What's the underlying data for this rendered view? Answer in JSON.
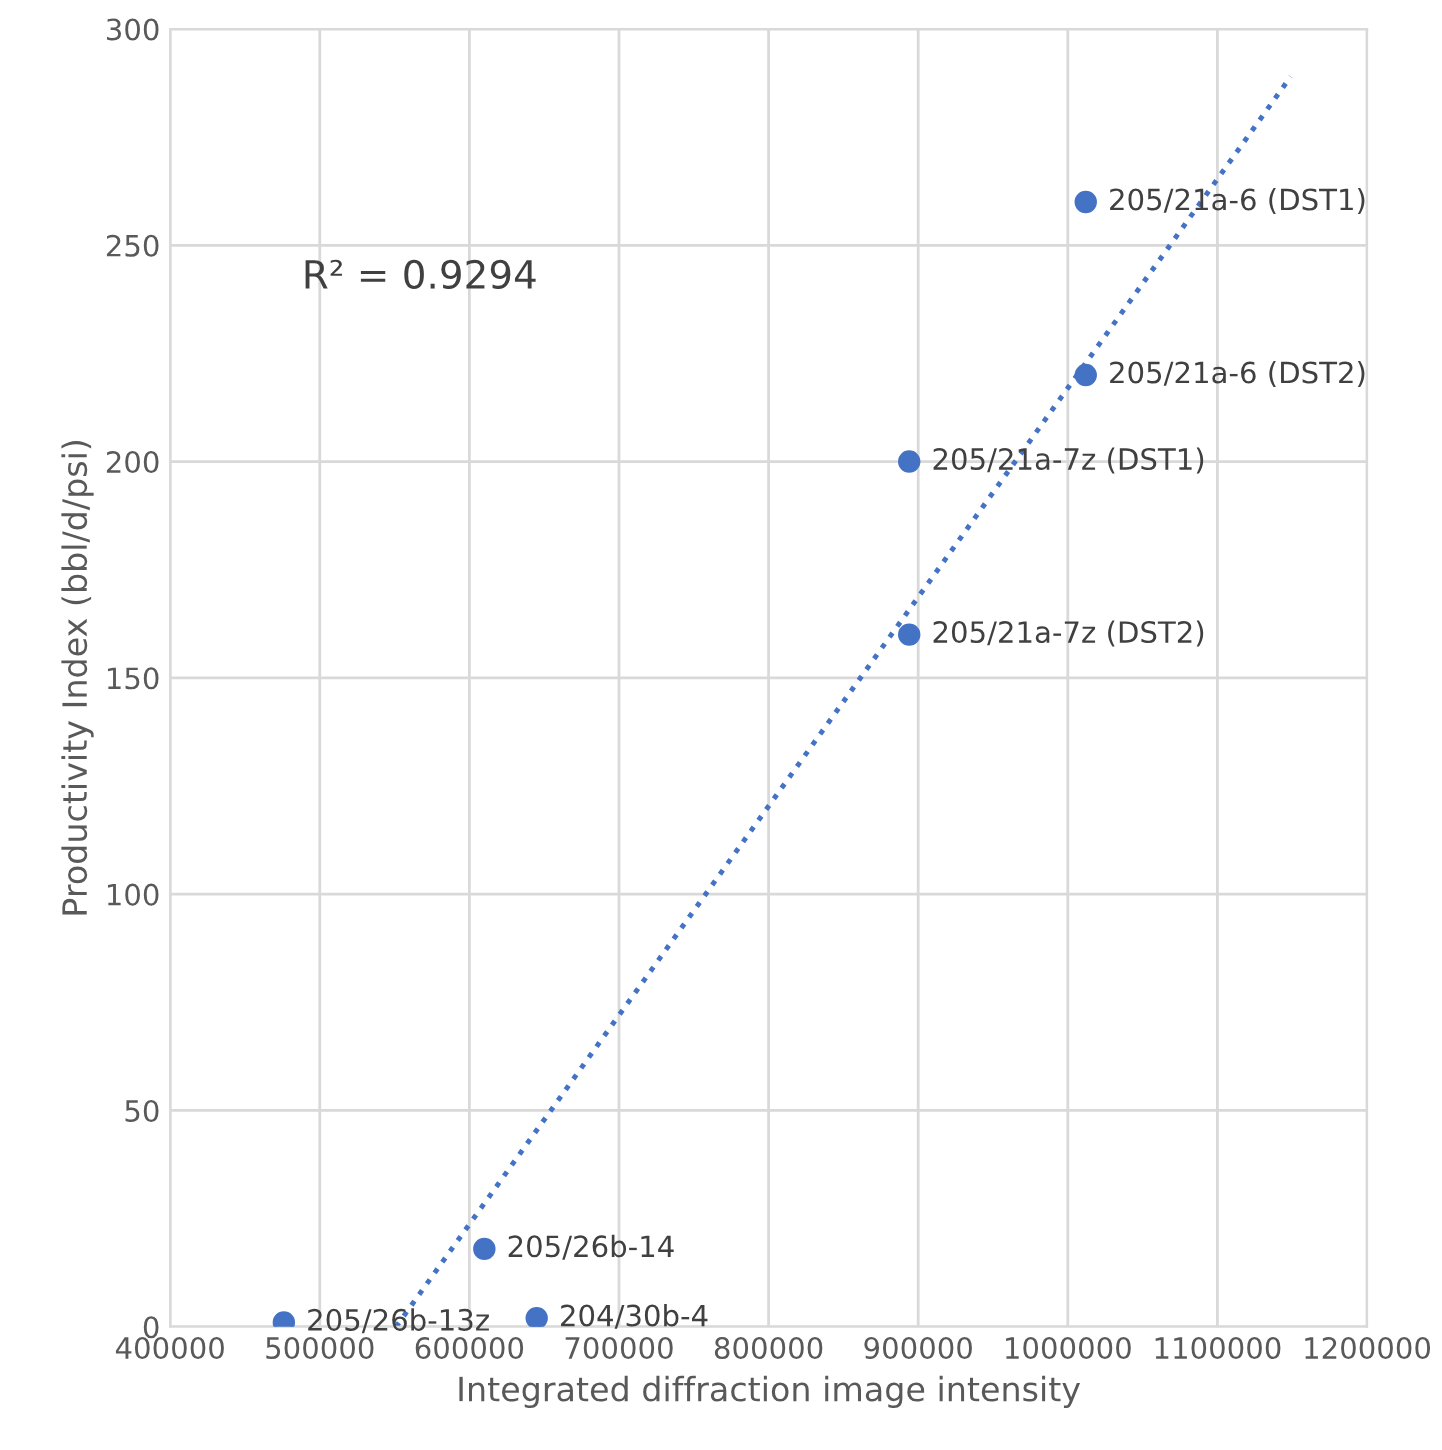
{
  "chart_data": {
    "type": "scatter",
    "xlabel": "Integrated diffraction image intensity",
    "ylabel": "Productivity Index (bbl/d/psi)",
    "series": [
      {
        "color": "#4472c4",
        "marker": "circle",
        "x": [
          476000,
          610000,
          645000,
          894000,
          894000,
          1012000,
          1012000
        ],
        "values": [
          1,
          18,
          2,
          200,
          160,
          260,
          220
        ]
      },
      {
        "type": "line",
        "color": "#4472c4",
        "marker": "none",
        "line_style": "dotted",
        "x": [
          551000,
          1149000
        ],
        "values": [
          0,
          289
        ]
      }
    ],
    "annotations": [
      {
        "text": "205/26b-13z",
        "x": 476000,
        "y": 1
      },
      {
        "text": "205/26b-14",
        "x": 610000,
        "y": 18
      },
      {
        "text": "204/30b-4",
        "x": 645000,
        "y": 2
      },
      {
        "text": "205/21a-7z (DST1)",
        "x": 894000,
        "y": 200
      },
      {
        "text": "205/21a-7z (DST2)",
        "x": 894000,
        "y": 160
      },
      {
        "text": "205/21a-6 (DST1)",
        "x": 1012000,
        "y": 260
      },
      {
        "text": "205/21a-6 (DST2)",
        "x": 1012000,
        "y": 220
      },
      "R² = 0.9294"
    ],
    "xlim": [
      400000,
      1200000
    ],
    "xticks": [
      400000,
      500000,
      600000,
      700000,
      800000,
      900000,
      1000000,
      1100000,
      1200000
    ],
    "ylim": [
      0,
      300
    ],
    "yticks": [
      0,
      50,
      100,
      150,
      200,
      250,
      300
    ],
    "grid": true
  }
}
